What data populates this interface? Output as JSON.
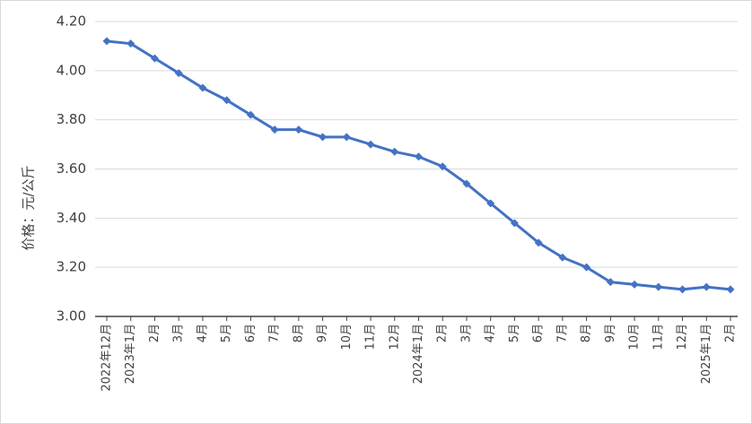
{
  "chart_data": {
    "type": "line",
    "y_label": "价格：元/公斤",
    "categories": [
      "2022年12月",
      "2023年1月",
      "2月",
      "3月",
      "4月",
      "5月",
      "6月",
      "7月",
      "8月",
      "9月",
      "10月",
      "11月",
      "12月",
      "2024年1月",
      "2月",
      "3月",
      "4月",
      "5月",
      "6月",
      "7月",
      "8月",
      "9月",
      "10月",
      "11月",
      "12月",
      "2025年1月",
      "2月"
    ],
    "series": [
      {
        "name": "价格",
        "color": "#4472c4",
        "values": [
          4.12,
          4.11,
          4.05,
          3.99,
          3.93,
          3.88,
          3.82,
          3.76,
          3.76,
          3.73,
          3.73,
          3.7,
          3.67,
          3.65,
          3.61,
          3.54,
          3.46,
          3.38,
          3.3,
          3.24,
          3.2,
          3.14,
          3.13,
          3.12,
          3.11,
          3.12,
          3.11
        ]
      }
    ],
    "ylim": [
      3.0,
      4.2
    ],
    "yticks": [
      {
        "value": 3.0,
        "label": "3.00"
      },
      {
        "value": 3.2,
        "label": "3.20"
      },
      {
        "value": 3.4,
        "label": "3.40"
      },
      {
        "value": 3.6,
        "label": "3.60"
      },
      {
        "value": 3.8,
        "label": "3.80"
      },
      {
        "value": 4.0,
        "label": "4.00"
      },
      {
        "value": 4.2,
        "label": "4.20"
      }
    ],
    "grid": true
  }
}
